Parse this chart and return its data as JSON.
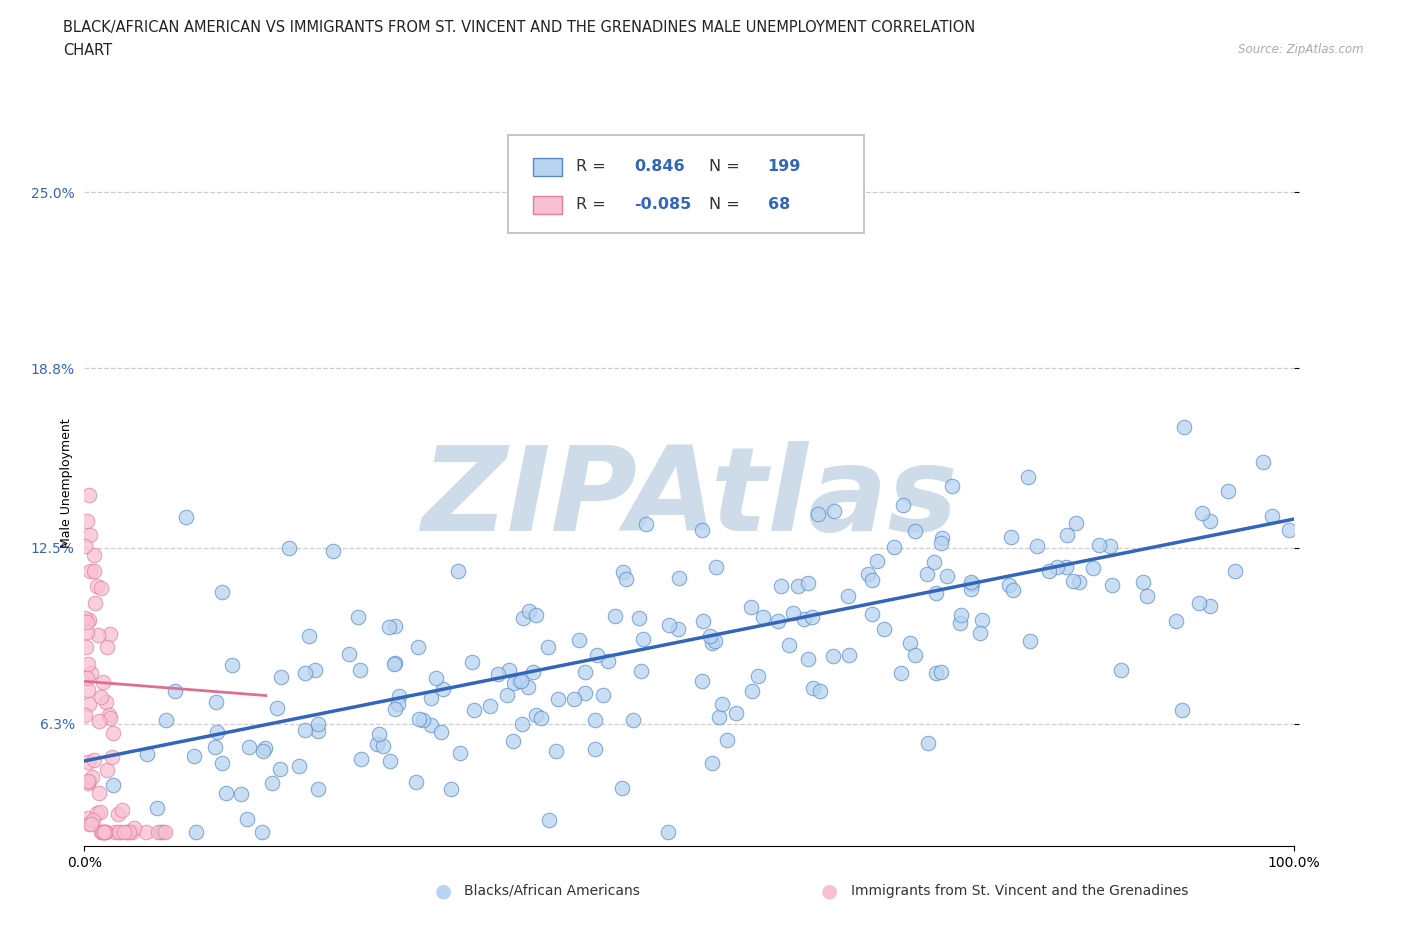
{
  "title_line1": "BLACK/AFRICAN AMERICAN VS IMMIGRANTS FROM ST. VINCENT AND THE GRENADINES MALE UNEMPLOYMENT CORRELATION",
  "title_line2": "CHART",
  "source_text": "Source: ZipAtlas.com",
  "ylabel": "Male Unemployment",
  "x_min": 0.0,
  "x_max": 1.0,
  "y_min": 0.02,
  "y_max": 0.275,
  "yticks": [
    0.063,
    0.125,
    0.188,
    0.25
  ],
  "ytick_labels": [
    "6.3%",
    "12.5%",
    "18.8%",
    "25.0%"
  ],
  "xtick_positions": [
    0.0,
    1.0
  ],
  "xtick_labels": [
    "0.0%",
    "100.0%"
  ],
  "blue_R": 0.846,
  "blue_N": 199,
  "pink_R": -0.085,
  "pink_N": 68,
  "blue_face_color": "#b8d4f0",
  "blue_edge_color": "#5588cc",
  "blue_line_color": "#3366bb",
  "pink_face_color": "#f8c0d0",
  "pink_edge_color": "#e080a0",
  "pink_line_color": "#dd7090",
  "watermark_text": "ZIPAtlas",
  "watermark_color": "#cddce8",
  "legend_label_blue": "Blacks/African Americans",
  "legend_label_pink": "Immigrants from St. Vincent and the Grenadines",
  "title_fontsize": 10.5,
  "axis_label_fontsize": 9,
  "tick_fontsize": 10,
  "background_color": "#ffffff",
  "grid_color": "#cccccc",
  "blue_seed": 123,
  "pink_seed": 456,
  "blue_trend_x0": 0.0,
  "blue_trend_y0": 0.05,
  "blue_trend_x1": 1.0,
  "blue_trend_y1": 0.135,
  "pink_trend_x0": 0.0,
  "pink_trend_y0": 0.078,
  "pink_trend_x1": 0.12,
  "pink_trend_y1": 0.073
}
